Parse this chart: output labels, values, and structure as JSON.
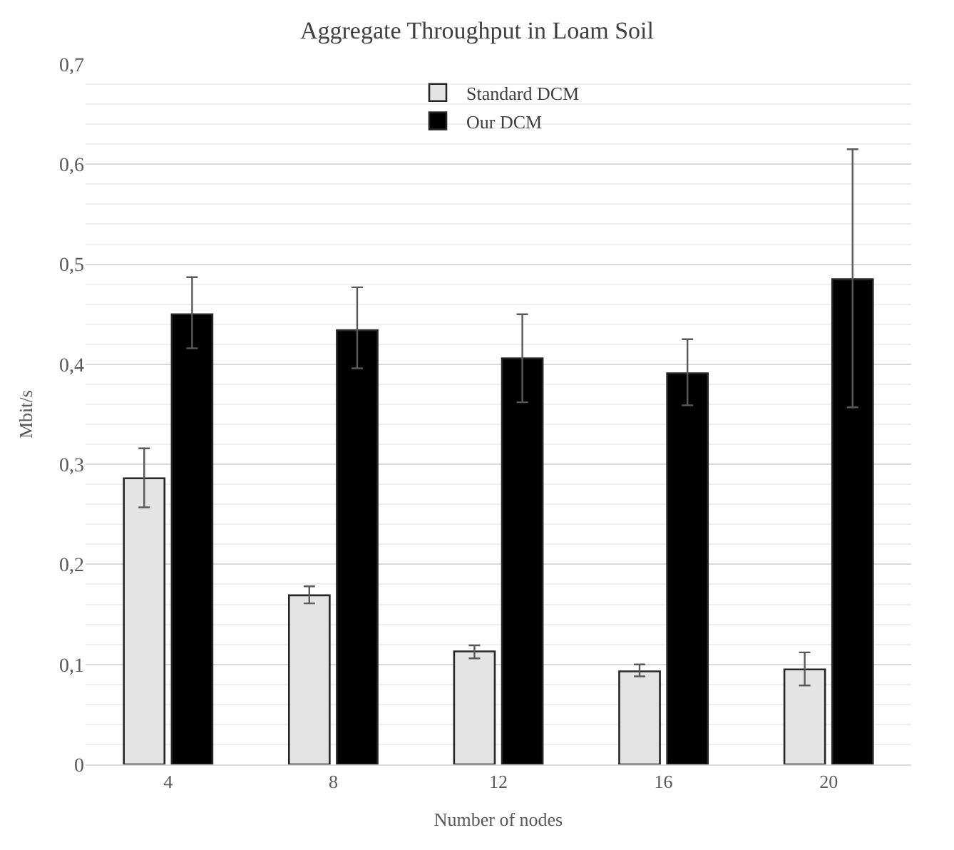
{
  "chart_data": {
    "type": "bar",
    "title": "Aggregate Throughput in Loam Soil",
    "xlabel": "Number of nodes",
    "ylabel": "Mbit/s",
    "categories": [
      "4",
      "8",
      "12",
      "16",
      "20"
    ],
    "series": [
      {
        "name": "Standard DCM",
        "color": "#e4e4e4",
        "values": [
          0.286,
          0.169,
          0.113,
          0.093,
          0.095
        ],
        "errors": [
          [
            0.257,
            0.316
          ],
          [
            0.161,
            0.178
          ],
          [
            0.106,
            0.119
          ],
          [
            0.088,
            0.1
          ],
          [
            0.079,
            0.112
          ]
        ]
      },
      {
        "name": "Our DCM",
        "color": "#000000",
        "values": [
          0.45,
          0.434,
          0.406,
          0.391,
          0.485
        ],
        "errors": [
          [
            0.416,
            0.487
          ],
          [
            0.396,
            0.477
          ],
          [
            0.362,
            0.45
          ],
          [
            0.359,
            0.425
          ],
          [
            0.357,
            0.615
          ]
        ]
      }
    ],
    "ylim": [
      0,
      0.7
    ],
    "yticks": [
      {
        "value": 0,
        "label": "0"
      },
      {
        "value": 0.1,
        "label": "0,1"
      },
      {
        "value": 0.2,
        "label": "0,2"
      },
      {
        "value": 0.3,
        "label": "0,3"
      },
      {
        "value": 0.4,
        "label": "0,4"
      },
      {
        "value": 0.5,
        "label": "0,5"
      },
      {
        "value": 0.6,
        "label": "0,6"
      },
      {
        "value": 0.7,
        "label": "0,7"
      }
    ],
    "grid": "y",
    "legend": "top"
  }
}
